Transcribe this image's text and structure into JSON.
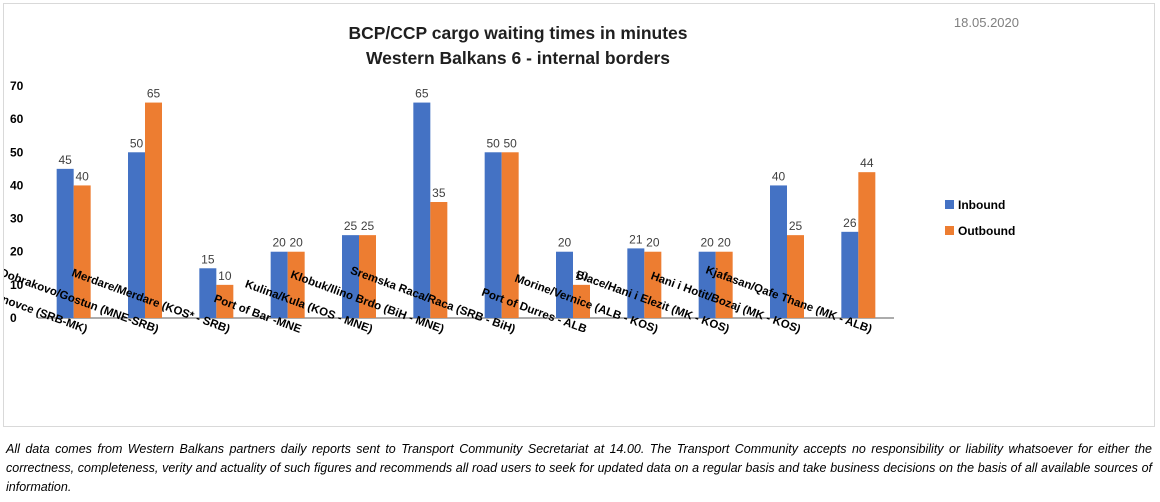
{
  "date_stamp": "18.05.2020",
  "disclaimer": "All data comes from Western Balkans partners daily reports sent to Transport Community Secretariat at 14.00. The Transport Community accepts no responsibility or liability whatsoever for either the correctness, completeness, verity and actuality of such figures and recommends all road users to seek for updated data on a regular basis and take business decisions on the basis of all available sources of information.",
  "chart_data": {
    "type": "bar",
    "title": "BCP/CCP cargo waiting times in minutes",
    "subtitle": "Western Balkans 6 - internal borders",
    "xlabel": "",
    "ylabel": "",
    "ylim": [
      0,
      70
    ],
    "yticks": [
      0,
      10,
      20,
      30,
      40,
      50,
      60,
      70
    ],
    "grid": false,
    "legend": "right",
    "data_labels": true,
    "categories": [
      "Presevo/ Tabanovce (SRB-MK)",
      "Dobrakovo/Gostun (MNE-SRB)",
      "Merdare/Merdare (KOS* - SRB)",
      "Port of Bar -MNE",
      "Kulina/Kula (KOS - MNE)",
      "Klobuk/Ilino Brdo (BiH - MNE)",
      "Sremska Raca/Raca (SRB - BiH)",
      "Port of Durres - ALB",
      "Morine/Vernice (ALB - KOS)",
      "Blace/Hani i Elezit (MK - KOS)",
      "Hani i Hotit/Bozaj (MK - KOS)",
      "Kjafasan/Qafe Thane (MK - ALB)"
    ],
    "series": [
      {
        "name": "Inbound",
        "color": "#4472c4",
        "values": [
          45,
          50,
          15,
          20,
          25,
          65,
          50,
          20,
          21,
          20,
          40,
          26
        ]
      },
      {
        "name": "Outbound",
        "color": "#ed7d31",
        "values": [
          40,
          65,
          10,
          20,
          25,
          35,
          50,
          10,
          20,
          20,
          25,
          44
        ]
      }
    ]
  }
}
